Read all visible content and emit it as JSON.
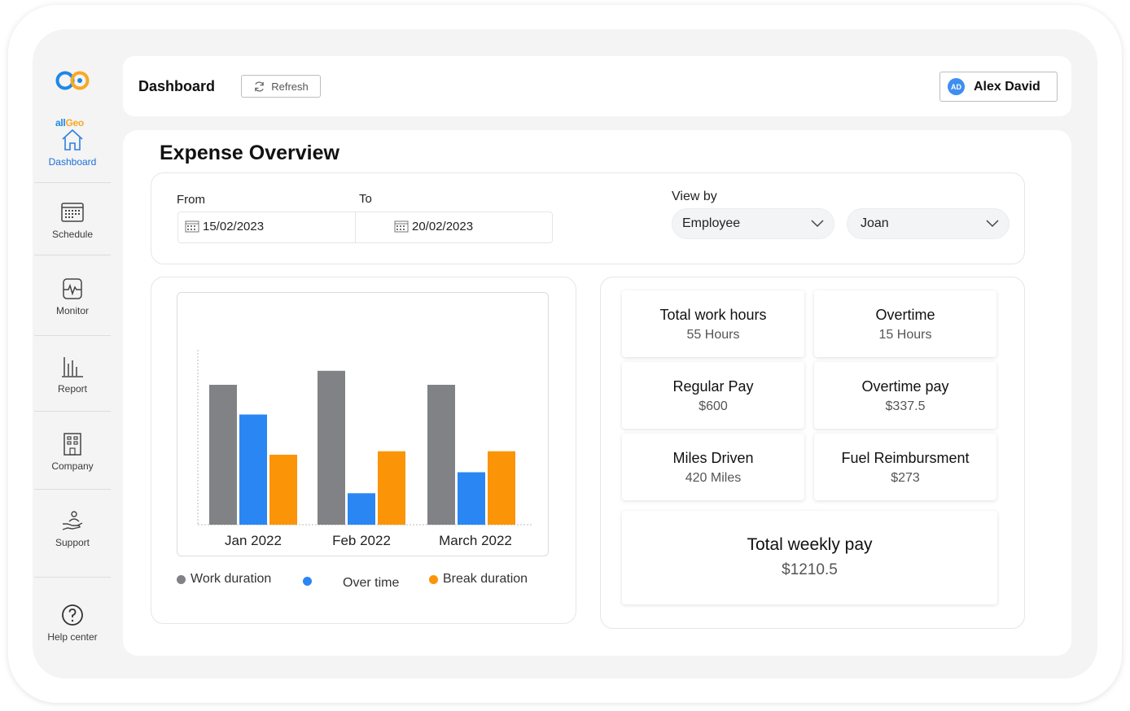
{
  "sidebar": {
    "logo_text_a": "all",
    "logo_text_b": "Geo",
    "items": [
      {
        "label": "Dashboard",
        "icon": "home-icon"
      },
      {
        "label": "Schedule",
        "icon": "calendar-icon"
      },
      {
        "label": "Monitor",
        "icon": "monitor-icon"
      },
      {
        "label": "Report",
        "icon": "bar-chart-icon"
      },
      {
        "label": "Company",
        "icon": "building-icon"
      },
      {
        "label": "Support",
        "icon": "support-hand-icon"
      },
      {
        "label": "Help center",
        "icon": "help-icon"
      }
    ]
  },
  "header": {
    "title": "Dashboard",
    "refresh_label": "Refresh",
    "user_initials": "AD",
    "user_name": "Alex David"
  },
  "main": {
    "title": "Expense Overview",
    "filters": {
      "from_label": "From",
      "to_label": "To",
      "from_date": "15/02/2023",
      "to_date": "20/02/2023",
      "view_by_label": "View by",
      "view_by_value": "Employee",
      "person_value": "Joan"
    },
    "stats": [
      {
        "title": "Total work hours",
        "value": "55 Hours"
      },
      {
        "title": "Overtime",
        "value": "15 Hours"
      },
      {
        "title": "Regular Pay",
        "value": "$600"
      },
      {
        "title": "Overtime pay",
        "value": "$337.5"
      },
      {
        "title": "Miles Driven",
        "value": "420 Miles"
      },
      {
        "title": "Fuel Reimbursment",
        "value": "$273"
      }
    ],
    "total": {
      "title": "Total weekly pay",
      "value": "$1210.5"
    }
  },
  "colors": {
    "work": "#808285",
    "overtime": "#2a86f3",
    "break": "#fb9406",
    "accent": "#1e6fd9"
  },
  "chart_data": {
    "type": "bar",
    "categories": [
      "Jan 2022",
      "Feb 2022",
      "March 2022"
    ],
    "series": [
      {
        "name": "Work duration",
        "values": [
          8,
          8.8,
          8
        ]
      },
      {
        "name": "Over time",
        "values": [
          6.3,
          1.8,
          3.0
        ]
      },
      {
        "name": "Break duration",
        "values": [
          4.0,
          4.2,
          4.2
        ]
      }
    ],
    "ylim": [
      0,
      10
    ],
    "legend_position": "bottom"
  }
}
